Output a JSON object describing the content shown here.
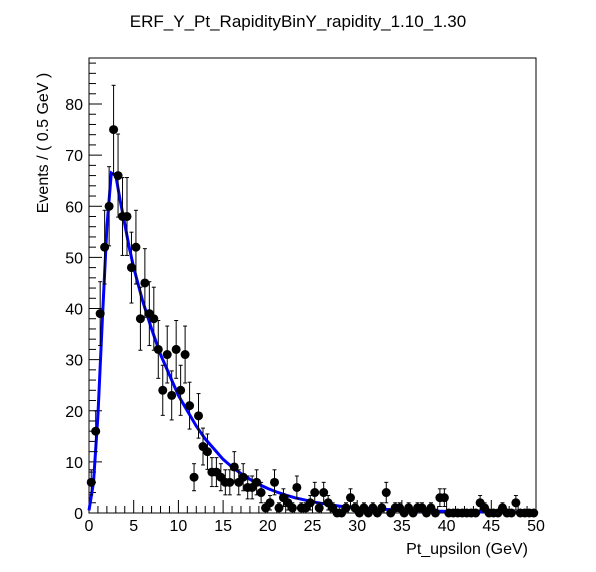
{
  "chart_data": {
    "type": "scatter",
    "title": "ERF_Y_Pt_RapidityBinY_rapidity_1.10_1.30",
    "xlabel": "Pt_upsilon (GeV)",
    "ylabel": "Events / ( 0.5 GeV )",
    "xlim": [
      0,
      50
    ],
    "ylim": [
      0,
      89
    ],
    "x_ticks": [
      0,
      5,
      10,
      15,
      20,
      25,
      30,
      35,
      40,
      45,
      50
    ],
    "y_ticks": [
      0,
      10,
      20,
      30,
      40,
      50,
      60,
      70,
      80
    ],
    "bin_width": 0.5,
    "colors": {
      "points": "#000000",
      "fit": "#0000ff"
    },
    "series": [
      {
        "name": "data",
        "x": [
          0.25,
          0.75,
          1.25,
          1.75,
          2.25,
          2.75,
          3.25,
          3.75,
          4.25,
          4.75,
          5.25,
          5.75,
          6.25,
          6.75,
          7.25,
          7.75,
          8.25,
          8.75,
          9.25,
          9.75,
          10.25,
          10.75,
          11.25,
          11.75,
          12.25,
          12.75,
          13.25,
          13.75,
          14.25,
          14.75,
          15.25,
          15.75,
          16.25,
          16.75,
          17.25,
          17.75,
          18.25,
          18.75,
          19.25,
          19.75,
          20.25,
          20.75,
          21.25,
          21.75,
          22.25,
          22.75,
          23.25,
          23.75,
          24.25,
          24.75,
          25.25,
          25.75,
          26.25,
          26.75,
          27.25,
          27.75,
          28.25,
          28.75,
          29.25,
          29.75,
          30.25,
          30.75,
          31.25,
          31.75,
          32.25,
          32.75,
          33.25,
          33.75,
          34.25,
          34.75,
          35.25,
          35.75,
          36.25,
          36.75,
          37.25,
          37.75,
          38.25,
          38.75,
          39.25,
          39.75,
          40.25,
          40.75,
          41.25,
          41.75,
          42.25,
          42.75,
          43.25,
          43.75,
          44.25,
          44.75,
          45.25,
          45.75,
          46.25,
          46.75,
          47.25,
          47.75,
          48.25,
          48.75,
          49.25,
          49.75
        ],
        "values": [
          6,
          16,
          39,
          52,
          60,
          75,
          66,
          58,
          58,
          48,
          52,
          38,
          45,
          39,
          38,
          32,
          24,
          31,
          23,
          32,
          24,
          31,
          21,
          7,
          19,
          13,
          12,
          8,
          8,
          7,
          6,
          6,
          9,
          6,
          7,
          5,
          5,
          6,
          4,
          1,
          2,
          6,
          1,
          3,
          2,
          1,
          5,
          1,
          1,
          2,
          4,
          1,
          4,
          2,
          1,
          0,
          0,
          1,
          3,
          1,
          0,
          1,
          0,
          1,
          0,
          1,
          4,
          0,
          1,
          1,
          0,
          1,
          0,
          1,
          1,
          0,
          1,
          0,
          3,
          3,
          0,
          0,
          0,
          0,
          0,
          0,
          0,
          2,
          1,
          0,
          0,
          0,
          1,
          0,
          0,
          2,
          0,
          0,
          0,
          0
        ]
      },
      {
        "name": "fit",
        "x": [
          0,
          0.5,
          1,
          1.5,
          2,
          2.5,
          3,
          3.5,
          4,
          4.5,
          5,
          6,
          7,
          8,
          9,
          10,
          11,
          12,
          13,
          14,
          15,
          16,
          17,
          18,
          19,
          20,
          21,
          22,
          23,
          24,
          25,
          26,
          27,
          28,
          29,
          30,
          32,
          34,
          36,
          38,
          40,
          42,
          44,
          46,
          48,
          50
        ],
        "values": [
          0.5,
          6,
          19,
          38,
          56,
          66.5,
          66,
          61,
          56.5,
          52,
          48,
          41.5,
          36,
          31,
          27,
          23,
          20,
          17,
          14.5,
          12.5,
          10.5,
          9,
          7.7,
          6.6,
          5.6,
          4.8,
          4.1,
          3.5,
          3,
          2.6,
          2.2,
          1.9,
          1.6,
          1.35,
          1.15,
          1,
          0.8,
          0.65,
          0.5,
          0.4,
          0.32,
          0.25,
          0.2,
          0.15,
          0.12,
          0.1
        ]
      }
    ]
  }
}
